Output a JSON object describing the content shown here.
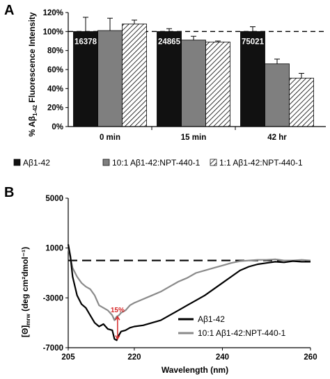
{
  "chart_data": [
    {
      "panel": "A",
      "type": "bar",
      "categories": [
        "0 min",
        "15 min",
        "42 hr"
      ],
      "series": [
        {
          "name": "Aβ1-42",
          "values": [
            100,
            100,
            100
          ],
          "errors": [
            15,
            3,
            5
          ],
          "color": "#111111",
          "pattern": "solid"
        },
        {
          "name": "10:1 Aβ1-42:NPT-440-1",
          "values": [
            101,
            91,
            66
          ],
          "errors": [
            13,
            4,
            5
          ],
          "color": "#7f7f7f",
          "pattern": "solid"
        },
        {
          "name": "1:1 Aβ1-42:NPT-440-1",
          "values": [
            108,
            89,
            51
          ],
          "errors": [
            4,
            1,
            5
          ],
          "color": "#ffffff",
          "pattern": "diagonal-hatch"
        }
      ],
      "bar_labels": [
        "16378",
        "24865",
        "75021"
      ],
      "ylabel_prefix": "% Aβ",
      "ylabel_subscript": "1-42",
      "ylabel_suffix": " Fluorescence Intensity",
      "ylim": [
        0,
        120
      ],
      "yticks": [
        "0%",
        "20%",
        "40%",
        "60%",
        "80%",
        "100%",
        "120%"
      ],
      "reference_line": 100,
      "legend_position": "bottom"
    },
    {
      "panel": "B",
      "type": "line",
      "xlabel": "Wavelength (nm)",
      "ylabel_prefix": "[Θ]",
      "ylabel_subscript": "mrw",
      "ylabel_suffix": " (deg cm²dmol⁻¹)",
      "xlim": [
        205,
        260
      ],
      "ylim": [
        -7000,
        5000
      ],
      "xticks": [
        "205",
        "220",
        "240",
        "260"
      ],
      "yticks": [
        "-7000",
        "-3000",
        "1000",
        "5000"
      ],
      "reference_line": 0,
      "legend_position": "bottom-right",
      "annotation": "15%",
      "annotation_x": 216.2,
      "annotation_y_from": -4500,
      "annotation_y_to": -6300,
      "series": [
        {
          "name": "Aβ1-42",
          "color": "#000000",
          "x": [
            205,
            205.5,
            206,
            207,
            208,
            209,
            210,
            211,
            212,
            213,
            214,
            215,
            215.5,
            216,
            216.5,
            217,
            218,
            219,
            220,
            222,
            224,
            226,
            228,
            230,
            232,
            234,
            236,
            238,
            240,
            242,
            244,
            246,
            248,
            250,
            252,
            254,
            256,
            258,
            260
          ],
          "y": [
            1300,
            300,
            -1300,
            -2800,
            -3500,
            -3800,
            -4400,
            -5000,
            -5300,
            -5100,
            -5500,
            -5600,
            -6300,
            -6400,
            -6000,
            -5700,
            -5600,
            -5400,
            -5300,
            -5200,
            -5000,
            -4800,
            -4400,
            -4000,
            -3600,
            -3200,
            -2800,
            -2300,
            -1800,
            -1300,
            -800,
            -500,
            -300,
            -200,
            -100,
            -150,
            -50,
            -100,
            -100
          ]
        },
        {
          "name": "10:1 Aβ1-42:NPT-440-1",
          "color": "#8a8a8a",
          "x": [
            205,
            205.5,
            206,
            207,
            208,
            209,
            210,
            211,
            212,
            213,
            214,
            215,
            215.5,
            216,
            216.5,
            217,
            218,
            219,
            220,
            222,
            224,
            226,
            228,
            230,
            232,
            234,
            236,
            238,
            240,
            242,
            244,
            246,
            248,
            250,
            252,
            254,
            256,
            258,
            260
          ],
          "y": [
            1000,
            200,
            -600,
            -1300,
            -1800,
            -2100,
            -2300,
            -2800,
            -3600,
            -3800,
            -4000,
            -4400,
            -4800,
            -4500,
            -4400,
            -4200,
            -4000,
            -3600,
            -3400,
            -3100,
            -2800,
            -2500,
            -2100,
            -1700,
            -1400,
            -1000,
            -800,
            -600,
            -400,
            -200,
            -50,
            0,
            50,
            50,
            100,
            0,
            0,
            50,
            0
          ]
        }
      ]
    }
  ]
}
